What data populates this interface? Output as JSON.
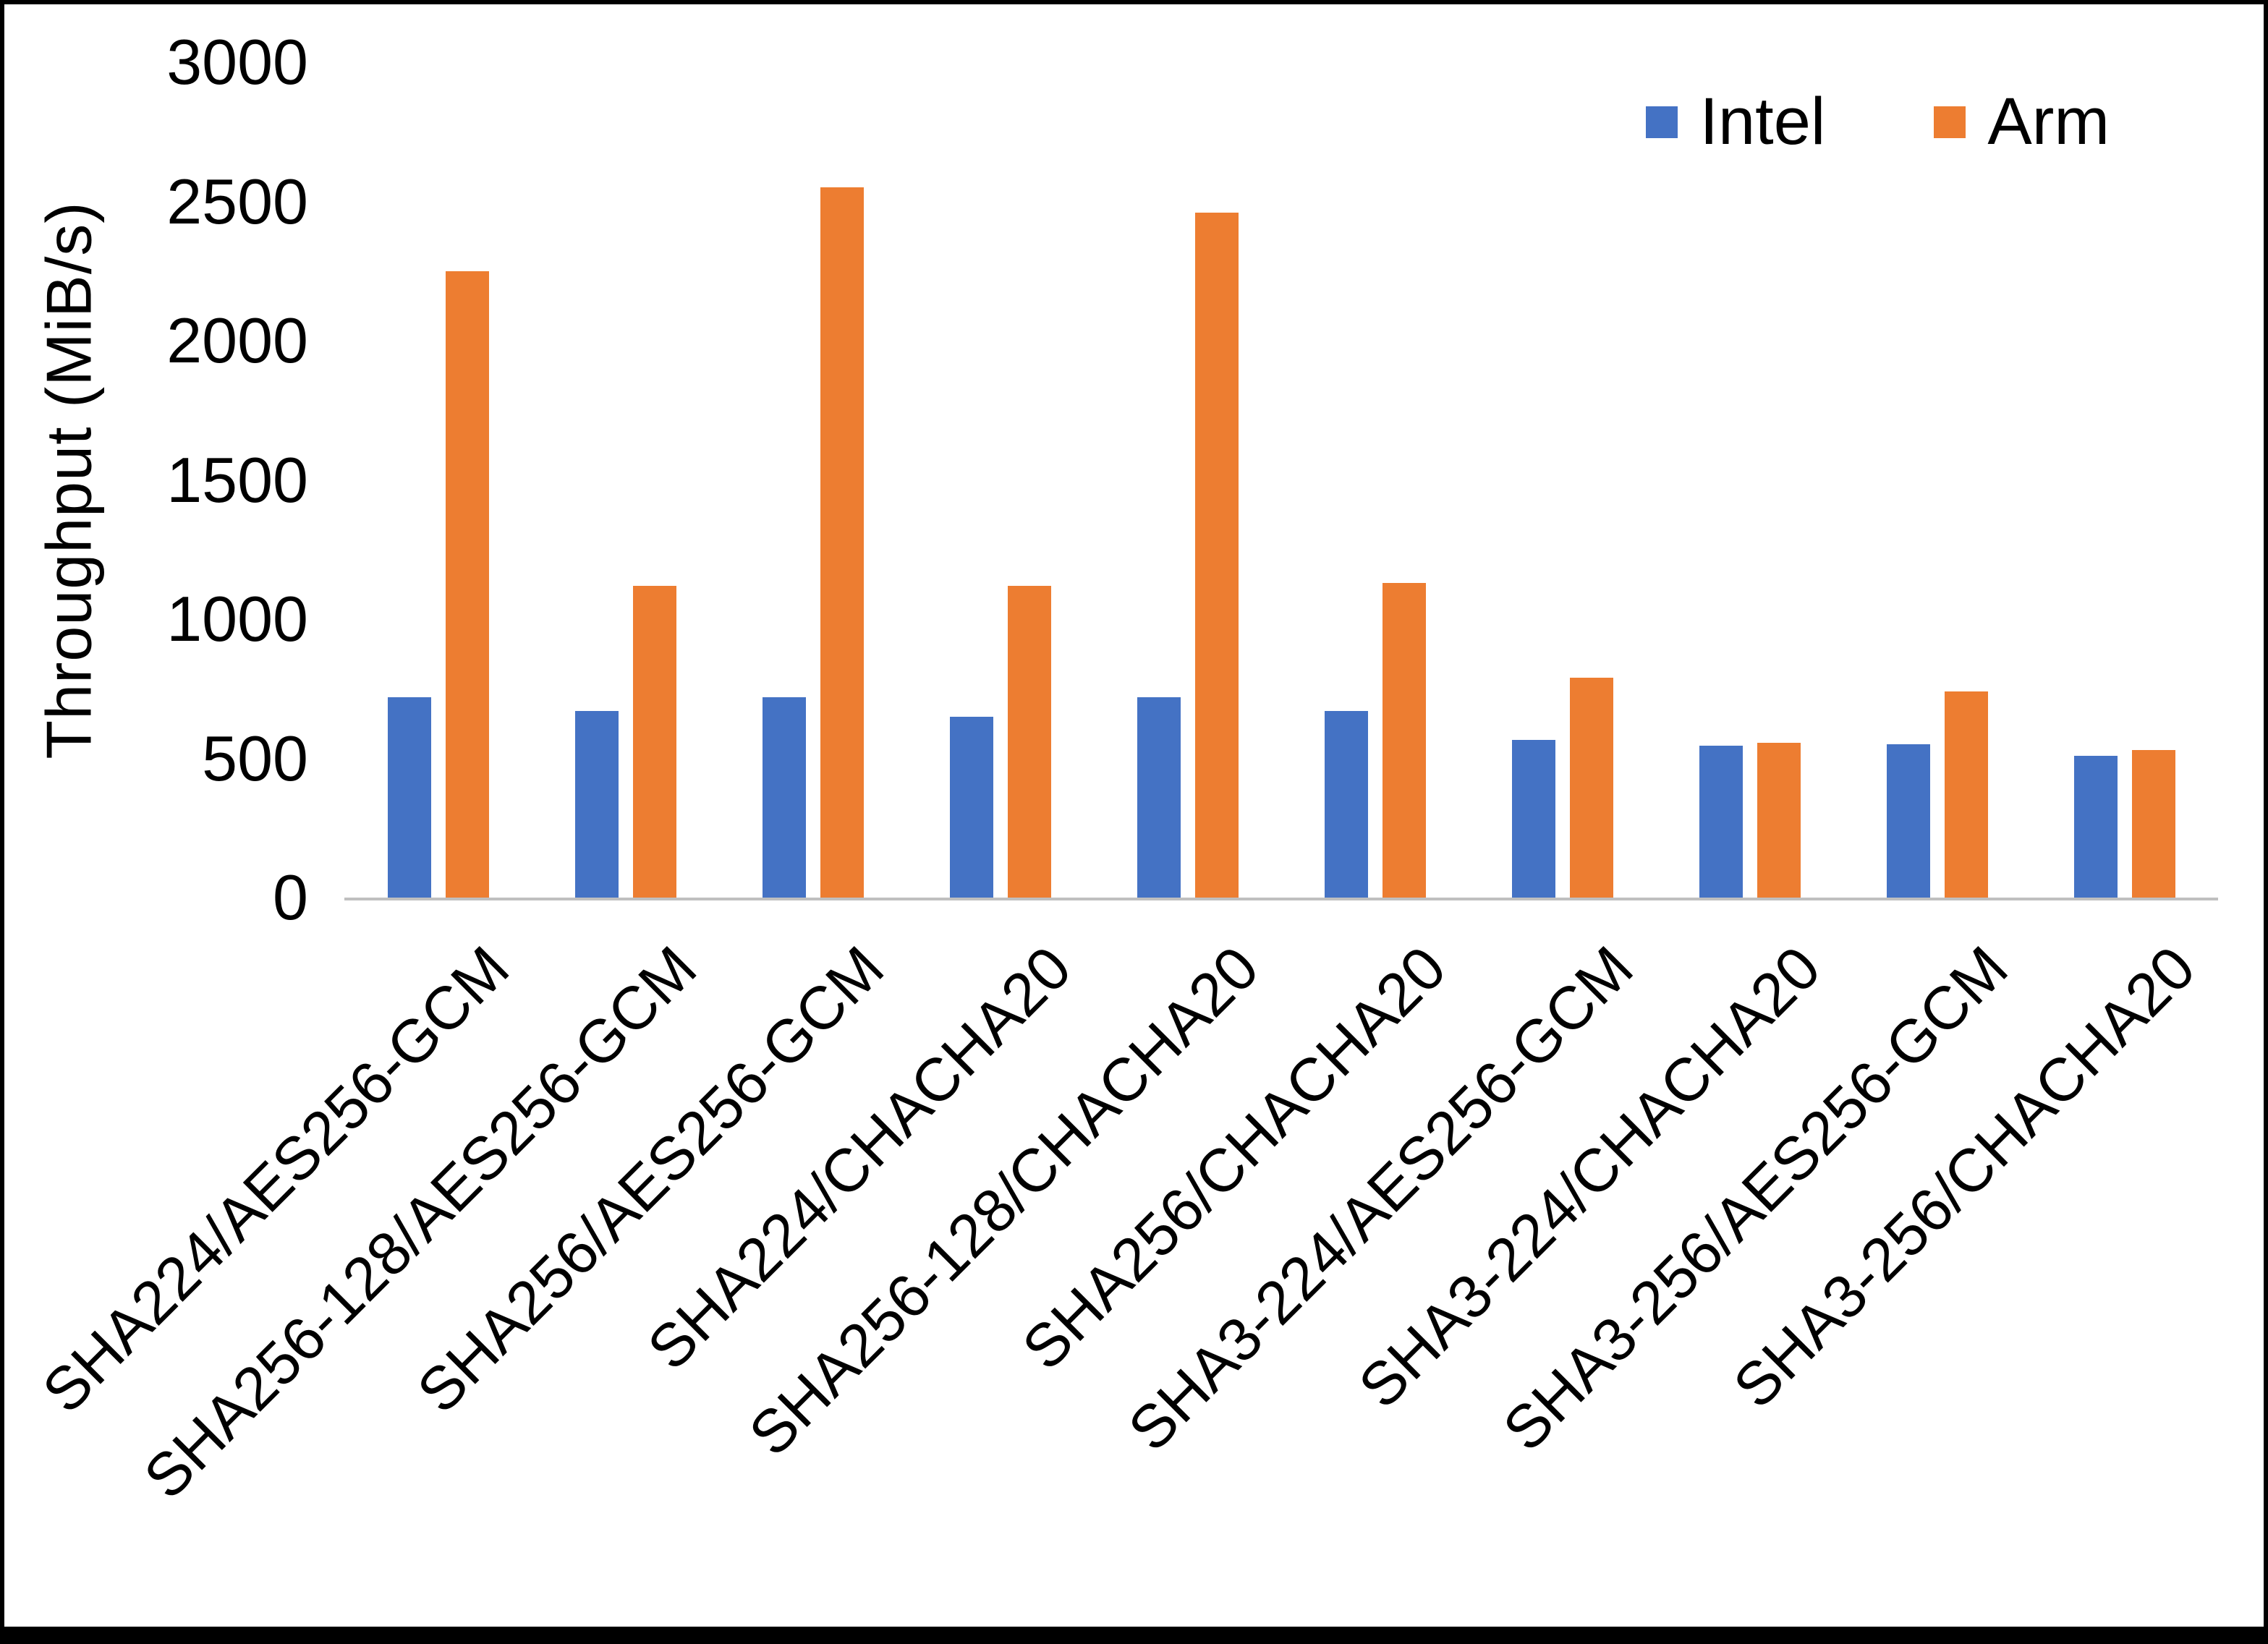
{
  "figure": {
    "background": "#FFFFFF",
    "border_color": "#000000",
    "axis_line_color": "#BFBFBF",
    "text_color": "#000000"
  },
  "chart_data": {
    "type": "bar",
    "title": "",
    "xlabel": "",
    "ylabel": "Throughput (MiB/s)",
    "ylim": [
      0,
      3000
    ],
    "yticks": [
      0,
      500,
      1000,
      1500,
      2000,
      2500,
      3000
    ],
    "grid": false,
    "legend_position": "top-right",
    "categories": [
      "SHA224/AES256-GCM",
      "SHA256-128/AES256-GCM",
      "SHA256/AES256-GCM",
      "SHA224/CHACHA20",
      "SHA256-128/CHACHA20",
      "SHA256/CHACHA20",
      "SHA3-224/AES256-GCM",
      "SHA3-224/CHACHA20",
      "SHA3-256/AES256-GCM",
      "SHA3-256/CHACHA20"
    ],
    "series": [
      {
        "name": "Intel",
        "color": "#4472C4",
        "values": [
          720,
          670,
          720,
          650,
          720,
          670,
          565,
          545,
          550,
          510
        ]
      },
      {
        "name": "Arm",
        "color": "#ED7D31",
        "values": [
          2250,
          1120,
          2550,
          1120,
          2460,
          1130,
          790,
          555,
          740,
          530
        ]
      }
    ]
  }
}
